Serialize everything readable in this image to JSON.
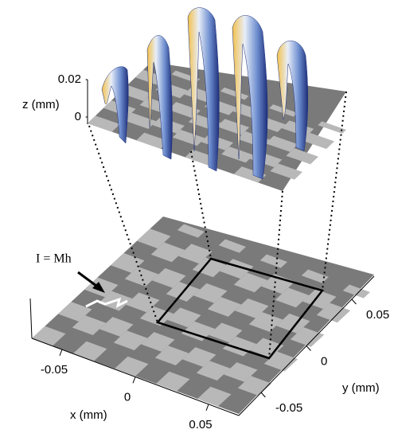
{
  "z_axis": {
    "label": "z (mm)",
    "ticks": [
      0.02,
      0
    ]
  },
  "x_axis": {
    "label": "x (mm)",
    "ticks": [
      -0.05,
      0,
      0.05
    ]
  },
  "y_axis": {
    "label": "y (mm)",
    "ticks": [
      0.05,
      0,
      -0.05
    ]
  },
  "annotation": "I = Mh"
}
